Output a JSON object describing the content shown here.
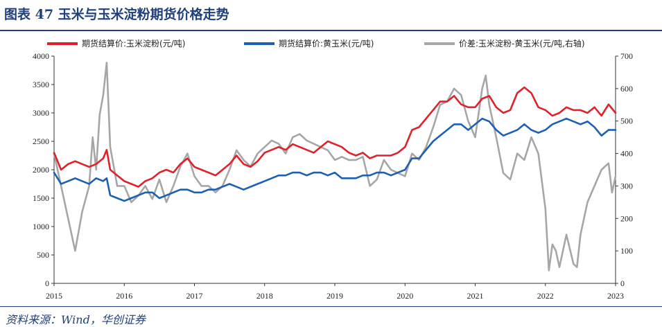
{
  "figure": {
    "title": "图表 47  玉米与玉米淀粉期货价格走势",
    "source": "资料来源：Wind，华创证券"
  },
  "colors": {
    "starch": "#e0202a",
    "corn": "#1d5fb0",
    "spread": "#a6a6a6",
    "accent": "#1f3f7a"
  },
  "chart_data": {
    "type": "line",
    "title": "",
    "xlabel": "",
    "ylabel": "",
    "y2label": "",
    "x_ticks": [
      "2015",
      "2016",
      "2017",
      "2018",
      "2019",
      "2020",
      "2021",
      "2022",
      "2023"
    ],
    "ylim": [
      0,
      4000
    ],
    "yticks": [
      0,
      500,
      1000,
      1500,
      2000,
      2500,
      3000,
      3500,
      4000
    ],
    "y2lim": [
      0,
      700
    ],
    "y2ticks": [
      0,
      100,
      200,
      300,
      400,
      500,
      600,
      700
    ],
    "grid": false,
    "legend": "top",
    "series": [
      {
        "name": "期货结算价:玉米淀粉(元/吨)",
        "axis": "left",
        "color": "#e0202a",
        "x": [
          2015.0,
          2015.1,
          2015.2,
          2015.3,
          2015.4,
          2015.5,
          2015.6,
          2015.7,
          2015.75,
          2015.8,
          2015.9,
          2016.0,
          2016.1,
          2016.2,
          2016.3,
          2016.4,
          2016.5,
          2016.6,
          2016.7,
          2016.8,
          2016.9,
          2017.0,
          2017.1,
          2017.2,
          2017.3,
          2017.4,
          2017.5,
          2017.6,
          2017.7,
          2017.8,
          2017.9,
          2018.0,
          2018.1,
          2018.2,
          2018.3,
          2018.4,
          2018.5,
          2018.6,
          2018.7,
          2018.8,
          2018.9,
          2019.0,
          2019.1,
          2019.2,
          2019.3,
          2019.4,
          2019.5,
          2019.6,
          2019.7,
          2019.8,
          2019.9,
          2020.0,
          2020.1,
          2020.2,
          2020.3,
          2020.4,
          2020.5,
          2020.6,
          2020.7,
          2020.8,
          2020.9,
          2021.0,
          2021.1,
          2021.2,
          2021.3,
          2021.4,
          2021.5,
          2021.6,
          2021.7,
          2021.8,
          2021.9,
          2022.0,
          2022.1,
          2022.2,
          2022.3,
          2022.4,
          2022.5,
          2022.6,
          2022.7,
          2022.8,
          2022.9,
          2023.0
        ],
        "y": [
          2300,
          2000,
          2100,
          2150,
          2100,
          2050,
          2100,
          2200,
          2350,
          2000,
          1900,
          1800,
          1750,
          1700,
          1800,
          1850,
          1950,
          2000,
          1950,
          2100,
          2200,
          2050,
          2000,
          1950,
          1900,
          2000,
          2100,
          2250,
          2100,
          2050,
          2150,
          2300,
          2350,
          2400,
          2350,
          2450,
          2400,
          2350,
          2300,
          2400,
          2500,
          2450,
          2400,
          2300,
          2250,
          2300,
          2200,
          2250,
          2250,
          2250,
          2300,
          2400,
          2700,
          2750,
          2900,
          3050,
          3200,
          3200,
          3300,
          3150,
          3100,
          3100,
          3250,
          3300,
          3100,
          3000,
          3050,
          3350,
          3450,
          3350,
          3100,
          3050,
          2950,
          3000,
          3100,
          3050,
          3050,
          3000,
          3100,
          2950,
          3150,
          3000
        ]
      },
      {
        "name": "期货结算价:黄玉米(元/吨)",
        "axis": "left",
        "color": "#1d5fb0",
        "x": [
          2015.0,
          2015.1,
          2015.2,
          2015.3,
          2015.4,
          2015.5,
          2015.6,
          2015.7,
          2015.75,
          2015.8,
          2015.9,
          2016.0,
          2016.1,
          2016.2,
          2016.3,
          2016.4,
          2016.5,
          2016.6,
          2016.7,
          2016.8,
          2016.9,
          2017.0,
          2017.1,
          2017.2,
          2017.3,
          2017.4,
          2017.5,
          2017.6,
          2017.7,
          2017.8,
          2017.9,
          2018.0,
          2018.1,
          2018.2,
          2018.3,
          2018.4,
          2018.5,
          2018.6,
          2018.7,
          2018.8,
          2018.9,
          2019.0,
          2019.1,
          2019.2,
          2019.3,
          2019.4,
          2019.5,
          2019.6,
          2019.7,
          2019.8,
          2019.9,
          2020.0,
          2020.1,
          2020.2,
          2020.3,
          2020.4,
          2020.5,
          2020.6,
          2020.7,
          2020.8,
          2020.9,
          2021.0,
          2021.1,
          2021.2,
          2021.3,
          2021.4,
          2021.5,
          2021.6,
          2021.7,
          2021.8,
          2021.9,
          2022.0,
          2022.1,
          2022.2,
          2022.3,
          2022.4,
          2022.5,
          2022.6,
          2022.7,
          2022.8,
          2022.9,
          2023.0
        ],
        "y": [
          1950,
          1750,
          1800,
          1850,
          1800,
          1750,
          1850,
          1800,
          1850,
          1550,
          1500,
          1450,
          1500,
          1550,
          1600,
          1600,
          1500,
          1550,
          1600,
          1650,
          1650,
          1600,
          1600,
          1650,
          1650,
          1700,
          1750,
          1700,
          1650,
          1700,
          1750,
          1800,
          1850,
          1900,
          1900,
          1950,
          1950,
          1900,
          1950,
          1950,
          1900,
          1950,
          1850,
          1850,
          1850,
          1900,
          1900,
          1950,
          1950,
          1900,
          1950,
          2000,
          2200,
          2200,
          2350,
          2500,
          2600,
          2700,
          2800,
          2800,
          2700,
          2800,
          2900,
          2850,
          2700,
          2600,
          2650,
          2700,
          2800,
          2700,
          2650,
          2700,
          2800,
          2850,
          2900,
          2850,
          2800,
          2850,
          2750,
          2600,
          2700,
          2700
        ]
      },
      {
        "name": "价差:玉米淀粉-黄玉米(元/吨,右轴)",
        "axis": "right",
        "color": "#a6a6a6",
        "x": [
          2015.0,
          2015.1,
          2015.2,
          2015.3,
          2015.4,
          2015.5,
          2015.55,
          2015.6,
          2015.65,
          2015.7,
          2015.75,
          2015.8,
          2015.9,
          2016.0,
          2016.1,
          2016.2,
          2016.3,
          2016.4,
          2016.5,
          2016.6,
          2016.7,
          2016.8,
          2016.9,
          2017.0,
          2017.1,
          2017.2,
          2017.3,
          2017.4,
          2017.5,
          2017.6,
          2017.7,
          2017.8,
          2017.9,
          2018.0,
          2018.1,
          2018.2,
          2018.3,
          2018.4,
          2018.5,
          2018.6,
          2018.7,
          2018.8,
          2018.9,
          2019.0,
          2019.1,
          2019.2,
          2019.3,
          2019.4,
          2019.5,
          2019.6,
          2019.7,
          2019.8,
          2019.9,
          2020.0,
          2020.1,
          2020.2,
          2020.3,
          2020.4,
          2020.5,
          2020.6,
          2020.7,
          2020.8,
          2020.9,
          2021.0,
          2021.1,
          2021.15,
          2021.2,
          2021.3,
          2021.4,
          2021.5,
          2021.6,
          2021.7,
          2021.8,
          2021.9,
          2022.0,
          2022.05,
          2022.1,
          2022.15,
          2022.2,
          2022.3,
          2022.4,
          2022.45,
          2022.5,
          2022.6,
          2022.7,
          2022.8,
          2022.9,
          2022.95,
          2023.0
        ],
        "y": [
          400,
          300,
          200,
          100,
          220,
          300,
          450,
          350,
          520,
          580,
          680,
          420,
          300,
          300,
          250,
          270,
          300,
          260,
          320,
          250,
          300,
          360,
          400,
          330,
          300,
          300,
          280,
          300,
          350,
          410,
          380,
          360,
          400,
          420,
          440,
          430,
          400,
          450,
          460,
          440,
          430,
          420,
          410,
          380,
          390,
          380,
          380,
          390,
          300,
          320,
          380,
          350,
          340,
          330,
          400,
          380,
          420,
          480,
          550,
          560,
          600,
          580,
          500,
          450,
          600,
          640,
          550,
          450,
          340,
          320,
          400,
          380,
          450,
          400,
          230,
          40,
          120,
          100,
          50,
          150,
          60,
          50,
          150,
          250,
          300,
          350,
          370,
          280,
          330
        ]
      }
    ]
  }
}
